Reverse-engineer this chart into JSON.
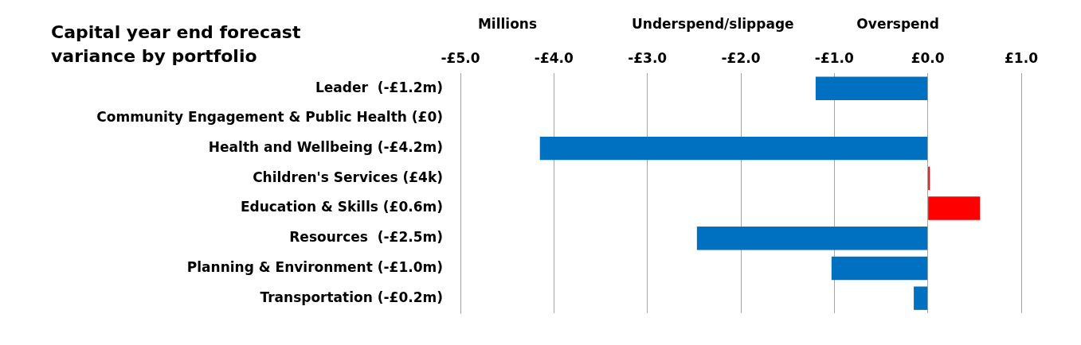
{
  "chart_data": {
    "type": "bar",
    "orientation": "horizontal",
    "title": "Capital year end forecast variance by portfolio",
    "xlabel": "Millions",
    "annotations": [
      "Underspend/slippage",
      "Overspend"
    ],
    "categories": [
      "Leader  (-£1.2m)",
      "Community Engagement & Public Health (£0)",
      "Health and Wellbeing (-£4.2m)",
      "Children's Services (£4k)",
      "Education & Skills (£0.6m)",
      "Resources  (-£2.5m)",
      "Planning & Environment (-£1.0m)",
      "Transportation (-£0.2m)"
    ],
    "values": [
      -1.2,
      0,
      -4.15,
      0.004,
      0.56,
      -2.47,
      -1.03,
      -0.15
    ],
    "colors": [
      "#0070c0",
      "#0070c0",
      "#0070c0",
      "#ff0000",
      "#ff0000",
      "#0070c0",
      "#0070c0",
      "#0070c0"
    ],
    "xlim": [
      -5,
      1
    ],
    "xticks": [
      {
        "value": -5,
        "label": "-£5.0"
      },
      {
        "value": -4,
        "label": "-£4.0"
      },
      {
        "value": -3,
        "label": "-£3.0"
      },
      {
        "value": -2,
        "label": "-£2.0"
      },
      {
        "value": -1,
        "label": "-£1.0"
      },
      {
        "value": 0,
        "label": "£0.0"
      },
      {
        "value": 1,
        "label": "£1.0"
      }
    ],
    "grid": "x"
  }
}
